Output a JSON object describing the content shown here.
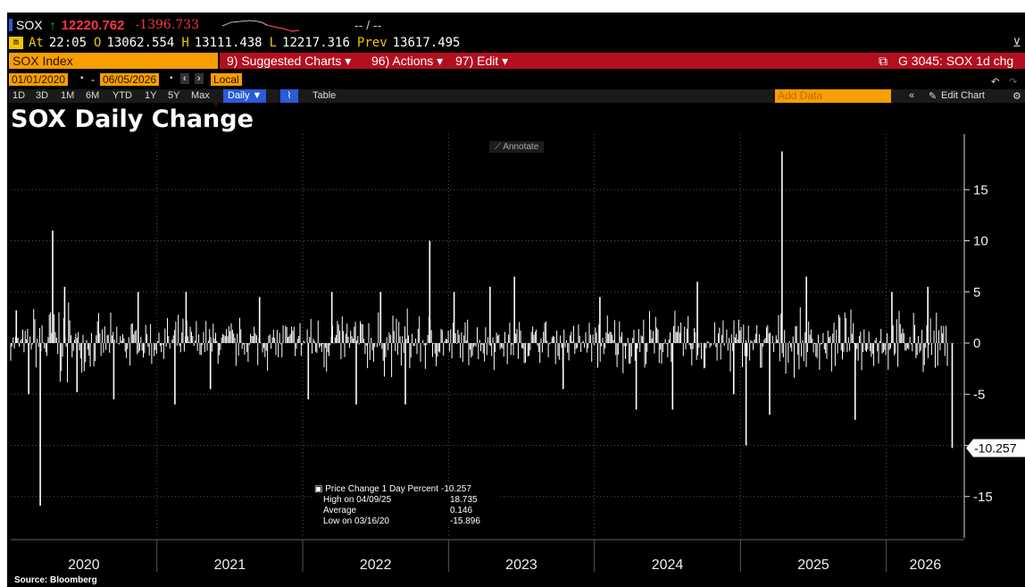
{
  "header": {
    "ticker": "SOX",
    "last_price": "12220.762",
    "net_change": "-1396.733",
    "bid_ask": "-- / --",
    "at_label": "At",
    "time": "22:05",
    "open_label": "O",
    "open": "13062.554",
    "high_label": "H",
    "high": "13111.438",
    "low_label": "L",
    "low": "12217.316",
    "prev_label": "Prev",
    "prev": "13617.495"
  },
  "toolbar": {
    "security": "SOX Index",
    "suggested_charts": "9) Suggested Charts",
    "actions": "96) Actions",
    "edit": "97) Edit",
    "chart_name": "G 3045: SOX 1d chg"
  },
  "dates": {
    "start": "01/01/2020",
    "end": "06/05/2026",
    "currency": "Local CCY"
  },
  "ranges": [
    "1D",
    "3D",
    "1M",
    "6M",
    "YTD",
    "1Y",
    "5Y",
    "Max"
  ],
  "frequency": "Daily",
  "table_label": "Table",
  "add_data_placeholder": "Add Data",
  "edit_chart_label": "Edit Chart",
  "annotate_label": "Annotate",
  "chart_data": {
    "type": "bar",
    "title": "SOX Daily Change",
    "xlabel": "",
    "ylabel": "",
    "ylim": [
      -20,
      20
    ],
    "yticks": [
      -15,
      -10,
      -5,
      0,
      5,
      10,
      15
    ],
    "x_categories": [
      "2020",
      "2021",
      "2022",
      "2023",
      "2024",
      "2025",
      "2026"
    ],
    "last_value_label": "-10.257",
    "grid": true,
    "series": [
      {
        "name": "Price Change 1 Day Percent",
        "approximate": true,
        "x": [
          "2020-01",
          "2020-02",
          "2020-03",
          "2020-04",
          "2020-05",
          "2020-06",
          "2020-09",
          "2020-11",
          "2021-02",
          "2021-03",
          "2021-05",
          "2021-09",
          "2022-01",
          "2022-03",
          "2022-05",
          "2022-07",
          "2022-09",
          "2022-11",
          "2023-01",
          "2023-04",
          "2023-06",
          "2023-10",
          "2024-01",
          "2024-04",
          "2024-07",
          "2024-09",
          "2024-12",
          "2025-01",
          "2025-03",
          "2025-04",
          "2025-06",
          "2025-10",
          "2026-01",
          "2026-04",
          "2026-06"
        ],
        "values": [
          3.2,
          -5.0,
          -15.9,
          11.0,
          5.5,
          -4.8,
          -5.5,
          5.0,
          -6.0,
          5.0,
          -4.5,
          4.5,
          -5.5,
          5.0,
          -6.0,
          5.0,
          -6.0,
          10.0,
          5.0,
          5.5,
          6.5,
          -4.5,
          4.5,
          -6.5,
          -6.5,
          6.0,
          -5.0,
          -10.0,
          -7.0,
          18.735,
          6.5,
          -7.5,
          5.0,
          5.5,
          -10.257
        ]
      }
    ],
    "legend": {
      "placement": "bottom-center",
      "rows": [
        {
          "label": "Price Change 1 Day Percent",
          "value": "-10.257"
        },
        {
          "label": "High on 04/09/25",
          "value": "18.735"
        },
        {
          "label": "Average",
          "value": "0.146"
        },
        {
          "label": "Low on 03/16/20",
          "value": "-15.896"
        }
      ]
    }
  },
  "source": "Source: Bloomberg",
  "colors": {
    "background": "#000000",
    "bars": "#ffffff",
    "ticker_up": "#e8e8e8",
    "price": "#ff3344",
    "amber": "#f59f00",
    "toolbar_red": "#b30f1f",
    "blue_button": "#2a5bd7"
  }
}
